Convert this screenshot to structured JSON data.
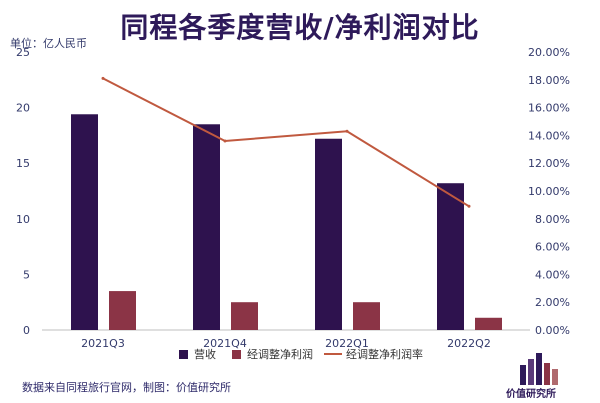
{
  "title": "同程各季度营收/净利润对比",
  "unit_label": "单位：亿人民币",
  "source": "数据来自同程旅行官网，制图：价值研究所",
  "logo_text": "价值研究所",
  "colors": {
    "revenue": "#2e124e",
    "profit": "#8b3446",
    "margin": "#c0593f",
    "title": "#2e1a5a"
  },
  "chart_data": {
    "type": "bar",
    "categories": [
      "2021Q3",
      "2021Q4",
      "2022Q1",
      "2022Q2"
    ],
    "series": [
      {
        "name": "营收",
        "type": "bar",
        "axis": "left",
        "values": [
          19.4,
          18.5,
          17.2,
          13.2
        ]
      },
      {
        "name": "经调整净利润",
        "type": "bar",
        "axis": "left",
        "values": [
          3.5,
          2.5,
          2.5,
          1.1
        ]
      },
      {
        "name": "经调整净利润率",
        "type": "line",
        "axis": "right",
        "values": [
          18.1,
          13.6,
          14.3,
          8.9
        ]
      }
    ],
    "y_left": {
      "min": 0,
      "max": 25,
      "ticks": [
        "0",
        "5",
        "10",
        "15",
        "20",
        "25"
      ]
    },
    "y_right": {
      "min": 0,
      "max": 20,
      "ticks": [
        "0.00%",
        "2.00%",
        "4.00%",
        "6.00%",
        "8.00%",
        "10.00%",
        "12.00%",
        "14.00%",
        "16.00%",
        "18.00%",
        "20.00%"
      ]
    },
    "grid": false,
    "legend_position": "bottom"
  }
}
